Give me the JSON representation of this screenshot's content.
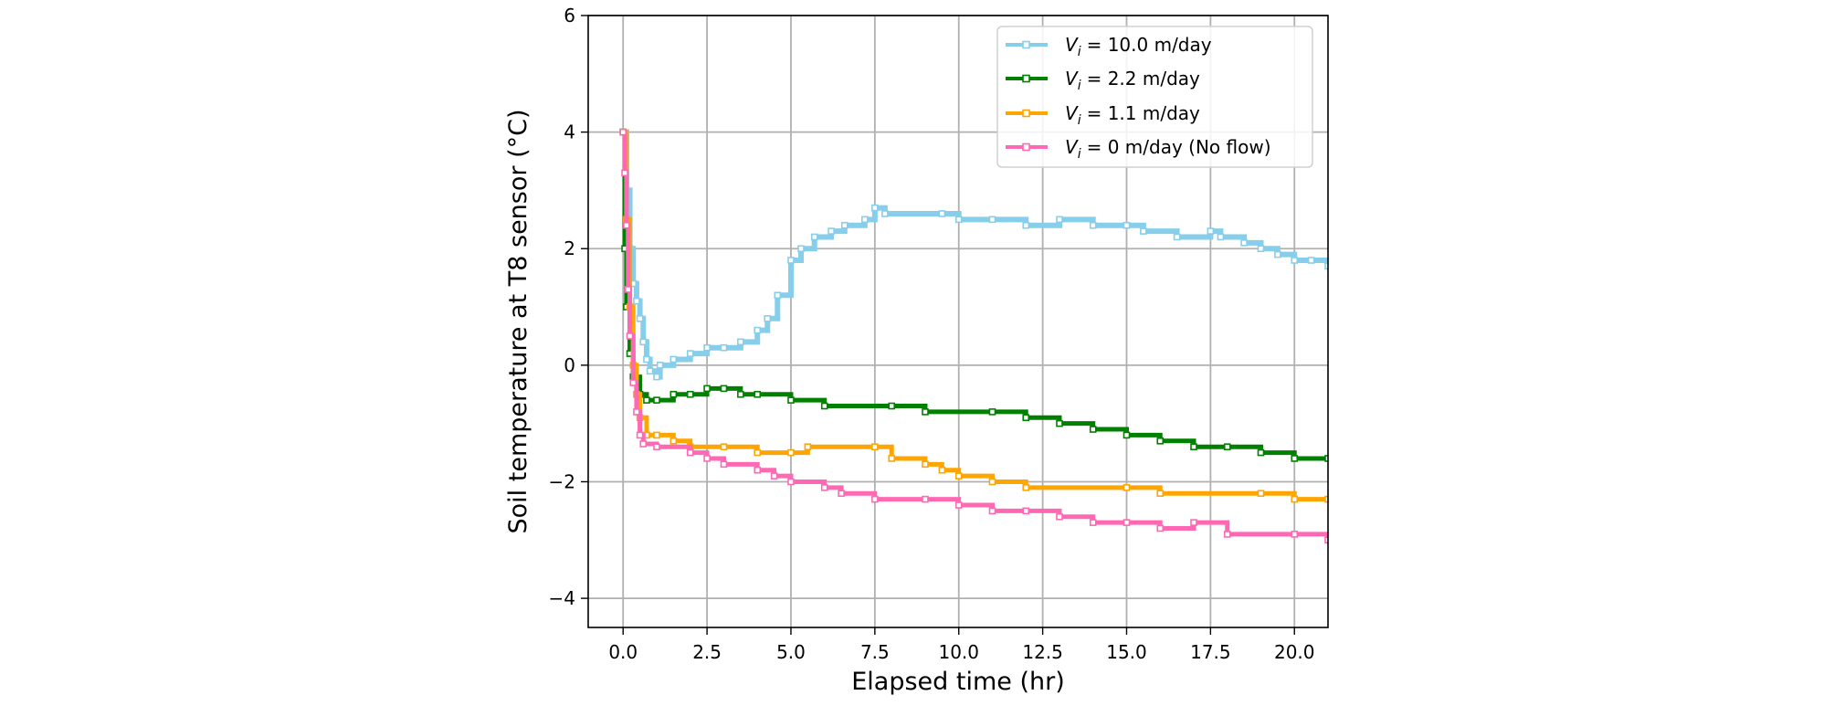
{
  "chart_data": {
    "type": "line",
    "title": "",
    "xlabel": "Elapsed time (hr)",
    "ylabel": "Soil temperature at T8 sensor (°C)",
    "xlim": [
      -1.04,
      21.0
    ],
    "ylim": [
      -4.5,
      6
    ],
    "xticks": [
      0.0,
      2.5,
      5.0,
      7.5,
      10.0,
      12.5,
      15.0,
      17.5,
      20.0
    ],
    "xtick_labels": [
      "0.0",
      "2.5",
      "5.0",
      "7.5",
      "10.0",
      "12.5",
      "15.0",
      "17.5",
      "20.0"
    ],
    "yticks": [
      -4,
      -2,
      0,
      2,
      4,
      6
    ],
    "ytick_labels": [
      "−4",
      "−2",
      "0",
      "2",
      "4",
      "6"
    ],
    "grid": true,
    "legend_position": "top-right",
    "series": [
      {
        "name": "V_i = 10.0 m/day",
        "label_var": "V",
        "label_sub": "i",
        "label_rest": "= 10.0 m/day",
        "color": "#87ceeb",
        "points": [
          [
            0,
            4.0
          ],
          [
            0.1,
            3.0
          ],
          [
            0.2,
            2.0
          ],
          [
            0.3,
            1.4
          ],
          [
            0.4,
            1.1
          ],
          [
            0.5,
            0.8
          ],
          [
            0.6,
            0.4
          ],
          [
            0.7,
            0.1
          ],
          [
            0.8,
            -0.1
          ],
          [
            1.0,
            -0.2
          ],
          [
            1.1,
            0.0
          ],
          [
            1.5,
            0.1
          ],
          [
            2.0,
            0.2
          ],
          [
            2.5,
            0.3
          ],
          [
            3.0,
            0.3
          ],
          [
            3.5,
            0.4
          ],
          [
            4.0,
            0.6
          ],
          [
            4.3,
            0.8
          ],
          [
            4.6,
            1.2
          ],
          [
            5.0,
            1.8
          ],
          [
            5.3,
            2.0
          ],
          [
            5.7,
            2.2
          ],
          [
            6.2,
            2.3
          ],
          [
            6.6,
            2.4
          ],
          [
            7.2,
            2.5
          ],
          [
            7.5,
            2.7
          ],
          [
            7.8,
            2.6
          ],
          [
            9.5,
            2.6
          ],
          [
            10.0,
            2.5
          ],
          [
            11.0,
            2.5
          ],
          [
            12.0,
            2.4
          ],
          [
            13.0,
            2.5
          ],
          [
            14.0,
            2.4
          ],
          [
            15.0,
            2.4
          ],
          [
            15.5,
            2.3
          ],
          [
            16.5,
            2.2
          ],
          [
            17.5,
            2.3
          ],
          [
            17.8,
            2.2
          ],
          [
            18.5,
            2.1
          ],
          [
            19.0,
            2.0
          ],
          [
            19.5,
            1.9
          ],
          [
            20.0,
            1.8
          ],
          [
            20.5,
            1.8
          ],
          [
            21.0,
            1.7
          ]
        ]
      },
      {
        "name": "V_i = 2.2 m/day",
        "label_var": "V",
        "label_sub": "i",
        "label_rest": "= 2.2 m/day",
        "color": "#008000",
        "points": [
          [
            0,
            4.0
          ],
          [
            0.05,
            2.0
          ],
          [
            0.1,
            1.0
          ],
          [
            0.2,
            0.2
          ],
          [
            0.3,
            -0.2
          ],
          [
            0.5,
            -0.5
          ],
          [
            0.7,
            -0.6
          ],
          [
            1.0,
            -0.6
          ],
          [
            1.5,
            -0.5
          ],
          [
            2.0,
            -0.5
          ],
          [
            2.5,
            -0.4
          ],
          [
            3.0,
            -0.4
          ],
          [
            3.5,
            -0.5
          ],
          [
            4.0,
            -0.5
          ],
          [
            5.0,
            -0.6
          ],
          [
            6.0,
            -0.7
          ],
          [
            8.0,
            -0.7
          ],
          [
            9.0,
            -0.8
          ],
          [
            11.0,
            -0.8
          ],
          [
            12.0,
            -0.9
          ],
          [
            13.0,
            -1.0
          ],
          [
            14.0,
            -1.1
          ],
          [
            15.0,
            -1.2
          ],
          [
            16.0,
            -1.3
          ],
          [
            17.0,
            -1.4
          ],
          [
            18.0,
            -1.4
          ],
          [
            19.0,
            -1.5
          ],
          [
            20.0,
            -1.6
          ],
          [
            21.0,
            -1.6
          ]
        ]
      },
      {
        "name": "V_i = 1.1 m/day",
        "label_var": "V",
        "label_sub": "i",
        "label_rest": "= 1.1 m/day",
        "color": "#ffa500",
        "points": [
          [
            0,
            4.0
          ],
          [
            0.1,
            2.5
          ],
          [
            0.2,
            1.0
          ],
          [
            0.3,
            0.0
          ],
          [
            0.4,
            -0.5
          ],
          [
            0.5,
            -0.9
          ],
          [
            0.7,
            -1.2
          ],
          [
            1.0,
            -1.2
          ],
          [
            1.5,
            -1.3
          ],
          [
            2.0,
            -1.4
          ],
          [
            3.0,
            -1.4
          ],
          [
            4.0,
            -1.5
          ],
          [
            5.0,
            -1.5
          ],
          [
            5.5,
            -1.4
          ],
          [
            7.5,
            -1.4
          ],
          [
            8.0,
            -1.6
          ],
          [
            9.0,
            -1.7
          ],
          [
            9.5,
            -1.8
          ],
          [
            10.0,
            -1.9
          ],
          [
            11.0,
            -2.0
          ],
          [
            12.0,
            -2.1
          ],
          [
            15.0,
            -2.1
          ],
          [
            16.0,
            -2.2
          ],
          [
            19.0,
            -2.2
          ],
          [
            20.0,
            -2.3
          ],
          [
            21.0,
            -2.3
          ]
        ]
      },
      {
        "name": "V_i = 0 m/day (No flow)",
        "label_var": "V",
        "label_sub": "i",
        "label_rest": "= 0 m/day (No flow)",
        "color": "#ff69b4",
        "points": [
          [
            0,
            4.0
          ],
          [
            0.05,
            3.3
          ],
          [
            0.1,
            2.4
          ],
          [
            0.15,
            1.3
          ],
          [
            0.2,
            0.5
          ],
          [
            0.3,
            -0.3
          ],
          [
            0.4,
            -0.8
          ],
          [
            0.5,
            -1.2
          ],
          [
            0.6,
            -1.35
          ],
          [
            1.0,
            -1.4
          ],
          [
            2.0,
            -1.5
          ],
          [
            2.5,
            -1.6
          ],
          [
            3.0,
            -1.7
          ],
          [
            4.0,
            -1.8
          ],
          [
            4.5,
            -1.9
          ],
          [
            5.0,
            -2.0
          ],
          [
            6.0,
            -2.1
          ],
          [
            6.5,
            -2.2
          ],
          [
            7.5,
            -2.3
          ],
          [
            9.0,
            -2.3
          ],
          [
            10.0,
            -2.4
          ],
          [
            11.0,
            -2.5
          ],
          [
            12.0,
            -2.5
          ],
          [
            13.0,
            -2.6
          ],
          [
            14.0,
            -2.7
          ],
          [
            15.0,
            -2.7
          ],
          [
            16.0,
            -2.8
          ],
          [
            17.0,
            -2.7
          ],
          [
            18.0,
            -2.9
          ],
          [
            20.0,
            -2.9
          ],
          [
            21.0,
            -3.0
          ]
        ]
      }
    ]
  }
}
